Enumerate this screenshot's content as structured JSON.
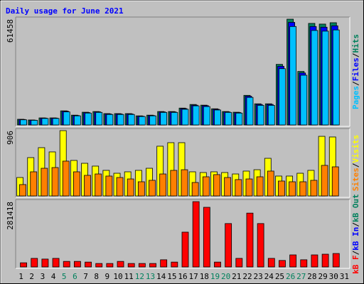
{
  "title": "Daily usage for June 2021",
  "separator": "/",
  "days": [
    "1",
    "2",
    "3",
    "4",
    "5",
    "6",
    "7",
    "8",
    "9",
    "10",
    "11",
    "12",
    "13",
    "14",
    "15",
    "16",
    "17",
    "18",
    "19",
    "20",
    "21",
    "22",
    "23",
    "24",
    "25",
    "26",
    "27",
    "28",
    "29",
    "30",
    "31"
  ],
  "day_colors": [
    "#000000",
    "#000000",
    "#000000",
    "#000000",
    "#00805c",
    "#00805c",
    "#000000",
    "#000000",
    "#000000",
    "#000000",
    "#000000",
    "#00805c",
    "#00805c",
    "#000000",
    "#000000",
    "#000000",
    "#000000",
    "#000000",
    "#00805c",
    "#00805c",
    "#000000",
    "#000000",
    "#000000",
    "#000000",
    "#000000",
    "#00805c",
    "#00805c",
    "#000000",
    "#000000",
    "#000000",
    "#000000"
  ],
  "chart_data": [
    {
      "type": "bar",
      "ylim": [
        0,
        61458
      ],
      "yticks": [
        61458
      ],
      "series": [
        {
          "name": "Hits",
          "color": "#00805c",
          "values": [
            3300,
            2900,
            4100,
            4100,
            8200,
            5700,
            7400,
            7800,
            6600,
            6600,
            6600,
            5300,
            5700,
            7800,
            7800,
            9800,
            11900,
            11500,
            9400,
            7800,
            7400,
            17200,
            12300,
            12300,
            35200,
            61458,
            31100,
            59000,
            58600,
            59400,
            null
          ]
        },
        {
          "name": "Files",
          "color": "#0000ff",
          "values": [
            3200,
            2800,
            4000,
            4000,
            8000,
            5500,
            7200,
            7600,
            6400,
            6400,
            6400,
            5100,
            5500,
            7600,
            7600,
            9500,
            11500,
            11200,
            9100,
            7600,
            7200,
            16700,
            11900,
            11900,
            34100,
            59600,
            30200,
            57200,
            56800,
            57600,
            null
          ]
        },
        {
          "name": "Pages",
          "color": "#00c0ff",
          "values": [
            3000,
            2700,
            3800,
            3800,
            7600,
            5300,
            6900,
            7300,
            6100,
            6100,
            6100,
            4900,
            5300,
            7300,
            7300,
            9100,
            11100,
            10700,
            8700,
            7300,
            6900,
            16000,
            11400,
            11400,
            32700,
            57200,
            28900,
            54900,
            54500,
            55200,
            null
          ]
        }
      ]
    },
    {
      "type": "bar",
      "ylim": [
        0,
        906
      ],
      "yticks": [
        906
      ],
      "series": [
        {
          "name": "Visits",
          "color": "#ffff00",
          "values": [
            256,
            532,
            670,
            611,
            906,
            493,
            453,
            414,
            355,
            315,
            335,
            355,
            384,
            690,
            739,
            739,
            335,
            325,
            335,
            325,
            305,
            345,
            364,
            522,
            276,
            276,
            315,
            355,
            827,
            818,
            null
          ]
        },
        {
          "name": "Sites",
          "color": "#ff8000",
          "values": [
            158,
            335,
            384,
            394,
            483,
            335,
            286,
            305,
            276,
            256,
            236,
            197,
            217,
            305,
            355,
            364,
            187,
            266,
            296,
            256,
            227,
            236,
            266,
            345,
            207,
            197,
            197,
            217,
            424,
            404,
            null
          ]
        }
      ]
    },
    {
      "type": "bar",
      "ylim": [
        0,
        281418
      ],
      "yticks": [
        281418
      ],
      "series": [
        {
          "name": "kB Out",
          "color": "#00805c",
          "values": [
            null,
            null,
            null,
            null,
            null,
            null,
            null,
            null,
            null,
            null,
            null,
            null,
            null,
            null,
            null,
            null,
            null,
            null,
            null,
            null,
            null,
            null,
            null,
            null,
            null,
            null,
            null,
            null,
            null,
            null,
            null
          ]
        },
        {
          "name": "kB In",
          "color": "#0000ff",
          "values": [
            null,
            null,
            null,
            null,
            null,
            null,
            null,
            null,
            null,
            null,
            null,
            null,
            null,
            null,
            null,
            null,
            null,
            null,
            null,
            null,
            null,
            null,
            null,
            null,
            null,
            null,
            null,
            null,
            null,
            null,
            null
          ]
        },
        {
          "name": "kB F",
          "color": "#ff0000",
          "values": [
            18000,
            37000,
            34000,
            37000,
            24000,
            24000,
            21000,
            15000,
            15000,
            24000,
            15000,
            15000,
            15000,
            31000,
            21000,
            150000,
            281418,
            257000,
            21000,
            187000,
            37000,
            232000,
            187000,
            37000,
            28000,
            52000,
            31000,
            52000,
            55000,
            58000,
            null
          ]
        }
      ]
    }
  ]
}
